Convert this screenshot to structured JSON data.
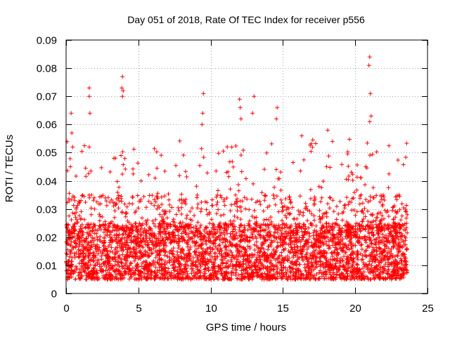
{
  "chart_data": {
    "type": "scatter",
    "title": "Day 051 of 2018, Rate Of TEC Index for receiver p556",
    "xlabel": "GPS time / hours",
    "ylabel": "ROTI / TECUs",
    "xlim": [
      0,
      25
    ],
    "ylim": [
      0,
      0.09
    ],
    "xticks": [
      0,
      5,
      10,
      15,
      20,
      25
    ],
    "xtick_labels": [
      "0",
      "5",
      "10",
      "15",
      "20",
      "25"
    ],
    "yticks": [
      0,
      0.01,
      0.02,
      0.03,
      0.04,
      0.05,
      0.06,
      0.07,
      0.08,
      0.09
    ],
    "ytick_labels": [
      "0",
      "0.01",
      "0.02",
      "0.03",
      "0.04",
      "0.05",
      "0.06",
      "0.07",
      "0.08",
      "0.09"
    ],
    "grid": true,
    "marker": "+",
    "color": "#ff0000",
    "series": [
      {
        "name": "ROTI",
        "x_range": [
          0.0,
          23.6
        ],
        "bulk_range": [
          0.005,
          0.025
        ],
        "notable_points": [
          {
            "x": 0.35,
            "y": 0.064
          },
          {
            "x": 0.4,
            "y": 0.057
          },
          {
            "x": 0.45,
            "y": 0.052
          },
          {
            "x": 0.3,
            "y": 0.045
          },
          {
            "x": 1.6,
            "y": 0.073
          },
          {
            "x": 1.6,
            "y": 0.07
          },
          {
            "x": 1.65,
            "y": 0.064
          },
          {
            "x": 1.6,
            "y": 0.052
          },
          {
            "x": 3.9,
            "y": 0.077
          },
          {
            "x": 3.85,
            "y": 0.073
          },
          {
            "x": 3.95,
            "y": 0.072
          },
          {
            "x": 3.9,
            "y": 0.07
          },
          {
            "x": 3.8,
            "y": 0.049
          },
          {
            "x": 9.5,
            "y": 0.071
          },
          {
            "x": 9.45,
            "y": 0.064
          },
          {
            "x": 9.4,
            "y": 0.06
          },
          {
            "x": 12.0,
            "y": 0.069
          },
          {
            "x": 12.05,
            "y": 0.066
          },
          {
            "x": 12.1,
            "y": 0.062
          },
          {
            "x": 13.0,
            "y": 0.07
          },
          {
            "x": 12.9,
            "y": 0.064
          },
          {
            "x": 14.6,
            "y": 0.066
          },
          {
            "x": 14.55,
            "y": 0.062
          },
          {
            "x": 16.3,
            "y": 0.056
          },
          {
            "x": 18.1,
            "y": 0.058
          },
          {
            "x": 21.0,
            "y": 0.084
          },
          {
            "x": 20.95,
            "y": 0.081
          },
          {
            "x": 21.05,
            "y": 0.071
          },
          {
            "x": 21.1,
            "y": 0.063
          },
          {
            "x": 21.0,
            "y": 0.061
          }
        ]
      }
    ]
  }
}
